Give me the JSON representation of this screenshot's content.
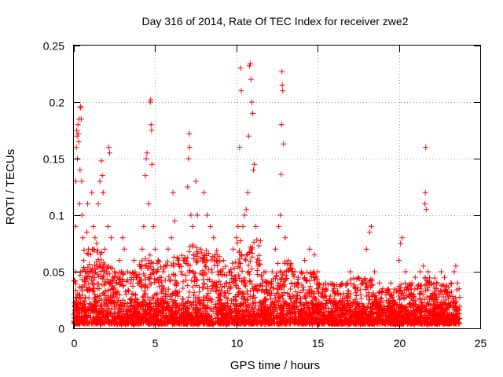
{
  "chart_data": {
    "type": "scatter",
    "title": "Day 316 of 2014, Rate Of TEC Index for receiver zwe2",
    "xlabel": "GPS time / hours",
    "ylabel": "ROTI / TECUs",
    "xlim": [
      0,
      25
    ],
    "ylim": [
      0,
      0.25
    ],
    "xticks": [
      0,
      5,
      10,
      15,
      20,
      25
    ],
    "yticks": [
      0,
      0.05,
      0.1,
      0.15,
      0.2,
      0.25
    ],
    "xtick_labels": [
      "0",
      "5",
      "10",
      "15",
      "20",
      "25"
    ],
    "ytick_labels": [
      "0",
      "0.05",
      "0.1",
      "0.15",
      "0.2",
      "0.25"
    ],
    "grid": true,
    "marker": "+",
    "color": "#ff0000",
    "series": [
      {
        "name": "ROTI",
        "points": [
          [
            0.0,
            0.012
          ],
          [
            0.05,
            0.02
          ],
          [
            0.1,
            0.05
          ],
          [
            0.1,
            0.09
          ],
          [
            0.12,
            0.13
          ],
          [
            0.15,
            0.16
          ],
          [
            0.18,
            0.175
          ],
          [
            0.2,
            0.17
          ],
          [
            0.22,
            0.15
          ],
          [
            0.25,
            0.18
          ],
          [
            0.28,
            0.172
          ],
          [
            0.3,
            0.165
          ],
          [
            0.32,
            0.185
          ],
          [
            0.35,
            0.11
          ],
          [
            0.38,
            0.14
          ],
          [
            0.4,
            0.195
          ],
          [
            0.42,
            0.196
          ],
          [
            0.45,
            0.185
          ],
          [
            0.48,
            0.13
          ],
          [
            0.5,
            0.1
          ],
          [
            0.55,
            0.08
          ],
          [
            0.6,
            0.06
          ],
          [
            0.7,
            0.05
          ],
          [
            0.8,
            0.085
          ],
          [
            0.85,
            0.11
          ],
          [
            0.9,
            0.07
          ],
          [
            1.0,
            0.05
          ],
          [
            1.1,
            0.12
          ],
          [
            1.2,
            0.09
          ],
          [
            1.3,
            0.08
          ],
          [
            1.4,
            0.075
          ],
          [
            1.5,
            0.11
          ],
          [
            1.6,
            0.13
          ],
          [
            1.7,
            0.148
          ],
          [
            1.75,
            0.135
          ],
          [
            1.8,
            0.12
          ],
          [
            1.9,
            0.07
          ],
          [
            2.0,
            0.05
          ],
          [
            2.1,
            0.09
          ],
          [
            2.15,
            0.16
          ],
          [
            2.2,
            0.155
          ],
          [
            2.3,
            0.08
          ],
          [
            2.5,
            0.05
          ],
          [
            2.6,
            0.04
          ],
          [
            2.8,
            0.06
          ],
          [
            3.0,
            0.08
          ],
          [
            3.1,
            0.07
          ],
          [
            3.3,
            0.05
          ],
          [
            3.5,
            0.04
          ],
          [
            3.7,
            0.06
          ],
          [
            3.9,
            0.045
          ],
          [
            4.0,
            0.04
          ],
          [
            4.2,
            0.07
          ],
          [
            4.3,
            0.09
          ],
          [
            4.4,
            0.135
          ],
          [
            4.45,
            0.15
          ],
          [
            4.5,
            0.155
          ],
          [
            4.6,
            0.11
          ],
          [
            4.7,
            0.2
          ],
          [
            4.72,
            0.202
          ],
          [
            4.75,
            0.18
          ],
          [
            4.78,
            0.175
          ],
          [
            4.8,
            0.145
          ],
          [
            4.9,
            0.09
          ],
          [
            5.0,
            0.07
          ],
          [
            5.2,
            0.06
          ],
          [
            5.5,
            0.05
          ],
          [
            5.8,
            0.07
          ],
          [
            6.0,
            0.08
          ],
          [
            6.1,
            0.12
          ],
          [
            6.2,
            0.095
          ],
          [
            6.4,
            0.06
          ],
          [
            6.6,
            0.05
          ],
          [
            6.8,
            0.06
          ],
          [
            7.0,
            0.125
          ],
          [
            7.05,
            0.15
          ],
          [
            7.1,
            0.172
          ],
          [
            7.12,
            0.16
          ],
          [
            7.2,
            0.1
          ],
          [
            7.3,
            0.09
          ],
          [
            7.5,
            0.13
          ],
          [
            7.6,
            0.1
          ],
          [
            7.8,
            0.07
          ],
          [
            8.0,
            0.12
          ],
          [
            8.2,
            0.1
          ],
          [
            8.4,
            0.09
          ],
          [
            8.6,
            0.08
          ],
          [
            8.8,
            0.06
          ],
          [
            9.0,
            0.05
          ],
          [
            9.2,
            0.06
          ],
          [
            9.4,
            0.04
          ],
          [
            9.6,
            0.05
          ],
          [
            9.8,
            0.07
          ],
          [
            10.0,
            0.08
          ],
          [
            10.1,
            0.09
          ],
          [
            10.2,
            0.16
          ],
          [
            10.25,
            0.23
          ],
          [
            10.3,
            0.21
          ],
          [
            10.4,
            0.09
          ],
          [
            10.5,
            0.1
          ],
          [
            10.6,
            0.105
          ],
          [
            10.7,
            0.12
          ],
          [
            10.75,
            0.17
          ],
          [
            10.8,
            0.232
          ],
          [
            10.85,
            0.234
          ],
          [
            10.9,
            0.22
          ],
          [
            10.95,
            0.2
          ],
          [
            11.0,
            0.19
          ],
          [
            11.05,
            0.14
          ],
          [
            11.1,
            0.145
          ],
          [
            11.2,
            0.09
          ],
          [
            11.4,
            0.06
          ],
          [
            11.6,
            0.04
          ],
          [
            11.8,
            0.05
          ],
          [
            12.0,
            0.04
          ],
          [
            12.2,
            0.05
          ],
          [
            12.4,
            0.07
          ],
          [
            12.6,
            0.09
          ],
          [
            12.7,
            0.1
          ],
          [
            12.75,
            0.136
          ],
          [
            12.78,
            0.18
          ],
          [
            12.8,
            0.227
          ],
          [
            12.82,
            0.215
          ],
          [
            12.85,
            0.21
          ],
          [
            12.9,
            0.163
          ],
          [
            13.0,
            0.08
          ],
          [
            13.2,
            0.06
          ],
          [
            13.4,
            0.04
          ],
          [
            13.6,
            0.05
          ],
          [
            13.8,
            0.045
          ],
          [
            14.0,
            0.05
          ],
          [
            14.2,
            0.06
          ],
          [
            14.5,
            0.07
          ],
          [
            14.8,
            0.065
          ],
          [
            15.0,
            0.05
          ],
          [
            15.5,
            0.04
          ],
          [
            16.0,
            0.035
          ],
          [
            16.5,
            0.04
          ],
          [
            17.0,
            0.05
          ],
          [
            17.5,
            0.045
          ],
          [
            17.8,
            0.04
          ],
          [
            18.0,
            0.07
          ],
          [
            18.2,
            0.085
          ],
          [
            18.3,
            0.09
          ],
          [
            18.5,
            0.05
          ],
          [
            18.8,
            0.04
          ],
          [
            19.0,
            0.035
          ],
          [
            19.5,
            0.04
          ],
          [
            20.0,
            0.06
          ],
          [
            20.1,
            0.075
          ],
          [
            20.2,
            0.08
          ],
          [
            20.4,
            0.05
          ],
          [
            20.8,
            0.04
          ],
          [
            21.0,
            0.045
          ],
          [
            21.3,
            0.05
          ],
          [
            21.5,
            0.055
          ],
          [
            21.6,
            0.11
          ],
          [
            21.62,
            0.12
          ],
          [
            21.65,
            0.16
          ],
          [
            21.68,
            0.105
          ],
          [
            21.8,
            0.05
          ],
          [
            22.0,
            0.04
          ],
          [
            22.3,
            0.035
          ],
          [
            22.6,
            0.05
          ],
          [
            22.8,
            0.045
          ],
          [
            23.0,
            0.03
          ],
          [
            23.2,
            0.04
          ],
          [
            23.4,
            0.05
          ],
          [
            23.5,
            0.055
          ],
          [
            23.6,
            0.04
          ],
          [
            23.7,
            0.035
          ]
        ],
        "density": [
          [
            0.0,
            0.5,
            0.05
          ],
          [
            0.5,
            1.0,
            0.075
          ],
          [
            1.0,
            2.0,
            0.07
          ],
          [
            2.0,
            3.0,
            0.055
          ],
          [
            3.0,
            4.0,
            0.05
          ],
          [
            4.0,
            5.0,
            0.065
          ],
          [
            5.0,
            6.0,
            0.06
          ],
          [
            6.0,
            7.0,
            0.065
          ],
          [
            7.0,
            8.0,
            0.075
          ],
          [
            8.0,
            9.0,
            0.07
          ],
          [
            9.0,
            10.0,
            0.06
          ],
          [
            10.0,
            11.5,
            0.08
          ],
          [
            11.5,
            12.5,
            0.05
          ],
          [
            12.5,
            13.5,
            0.06
          ],
          [
            13.5,
            15.0,
            0.05
          ],
          [
            15.0,
            17.0,
            0.04
          ],
          [
            17.0,
            18.5,
            0.045
          ],
          [
            18.5,
            20.0,
            0.035
          ],
          [
            20.0,
            21.5,
            0.04
          ],
          [
            21.5,
            22.5,
            0.045
          ],
          [
            22.5,
            23.75,
            0.04
          ]
        ]
      }
    ]
  }
}
